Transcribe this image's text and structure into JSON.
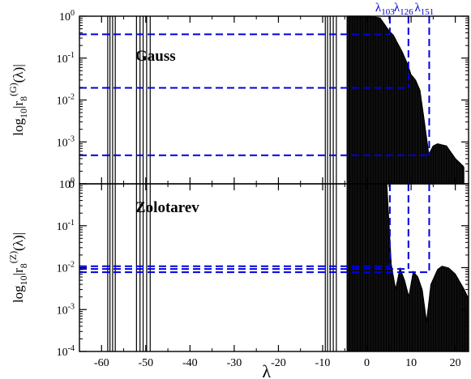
{
  "chart_data": {
    "type": "line",
    "x_label": "λ",
    "x_ticks": [
      -60,
      -50,
      -40,
      -30,
      -20,
      -10,
      0,
      10,
      20
    ],
    "x_range": [
      -65,
      23
    ],
    "eigenvalue_markers": [
      {
        "base": "λ",
        "sub": "103",
        "x": 5.2
      },
      {
        "base": "λ",
        "sub": "126",
        "x": 9.4
      },
      {
        "base": "λ",
        "sub": "151",
        "x": 14.1
      }
    ],
    "spike_groups": [
      [
        -58.6,
        -58.1,
        -57.5,
        -56.9
      ],
      [
        -52.1,
        -51.3,
        -50.6,
        -49.8,
        -49.0
      ],
      [
        -9.4,
        -8.9,
        -8.3,
        -7.6,
        -6.9
      ]
    ],
    "panels": [
      {
        "id": "gauss",
        "name": "Gauss",
        "ylabel_base": "log",
        "ylabel_sub": "10",
        "ylabel_mid": "|r",
        "ylabel_index": "8",
        "ylabel_sup": "(G)",
        "ylabel_tail": "(λ)|",
        "y_log_range": [
          -4,
          0
        ],
        "y_tick_labels": [
          {
            "base": "10",
            "exp": "0",
            "log": 0
          },
          {
            "base": "10",
            "exp": "-1",
            "log": -1
          },
          {
            "base": "10",
            "exp": "-2",
            "log": -2
          },
          {
            "base": "10",
            "exp": "-3",
            "log": -3
          }
        ],
        "bottom_tick_label": "0",
        "hlines": [
          {
            "value": 0.37,
            "x_end": 5.2
          },
          {
            "value": 0.0195,
            "x_end": 9.4
          },
          {
            "value": 0.00048,
            "x_end": 14.1
          }
        ],
        "envelope": [
          [
            -4.5,
            1.0
          ],
          [
            1,
            1.0
          ],
          [
            3,
            0.9
          ],
          [
            5,
            0.45
          ],
          [
            6,
            0.35
          ],
          [
            7,
            0.22
          ],
          [
            8,
            0.14
          ],
          [
            9,
            0.08
          ],
          [
            10,
            0.04
          ],
          [
            11,
            0.03
          ],
          [
            12,
            0.017
          ],
          [
            13,
            0.003
          ],
          [
            14,
            0.0005
          ],
          [
            15,
            0.0008
          ],
          [
            16,
            0.0009
          ],
          [
            18,
            0.0008
          ],
          [
            20,
            0.0004
          ],
          [
            22,
            0.00025
          ]
        ]
      },
      {
        "id": "zolotarev",
        "name": "Zolotarev",
        "ylabel_base": "log",
        "ylabel_sub": "10",
        "ylabel_mid": "|r",
        "ylabel_index": "8",
        "ylabel_sup": "(Z)",
        "ylabel_tail": "(λ)|",
        "y_log_range": [
          -4,
          0
        ],
        "y_tick_labels": [
          {
            "base": "10",
            "exp": "0",
            "log": 0
          },
          {
            "base": "10",
            "exp": "-1",
            "log": -1
          },
          {
            "base": "10",
            "exp": "-2",
            "log": -2
          },
          {
            "base": "10",
            "exp": "-3",
            "log": -3
          },
          {
            "base": "10",
            "exp": "-4",
            "log": -4
          }
        ],
        "hlines": [
          {
            "value": 0.0108,
            "x_end": 5.2
          },
          {
            "value": 0.0093,
            "x_end": 9.4
          },
          {
            "value": 0.0078,
            "x_end": 14.1
          }
        ],
        "envelope": [
          [
            -4.5,
            1.0
          ],
          [
            4.5,
            1.0
          ],
          [
            5.5,
            0.012
          ],
          [
            6.5,
            0.003
          ],
          [
            7.5,
            0.0095
          ],
          [
            8.5,
            0.005
          ],
          [
            9.5,
            0.002
          ],
          [
            10.5,
            0.008
          ],
          [
            11.5,
            0.006
          ],
          [
            12.5,
            0.003
          ],
          [
            13.5,
            0.0005
          ],
          [
            14.5,
            0.004
          ],
          [
            16,
            0.009
          ],
          [
            17,
            0.0108
          ],
          [
            18.5,
            0.0098
          ],
          [
            20,
            0.007
          ],
          [
            22,
            0.003
          ],
          [
            23,
            0.0018
          ]
        ]
      }
    ]
  }
}
